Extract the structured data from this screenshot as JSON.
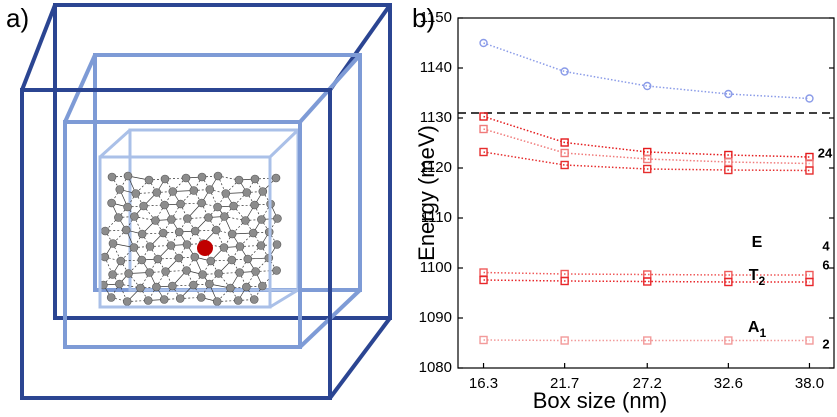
{
  "panel_labels": [
    "a)",
    "b)"
  ],
  "chart_data": {
    "type": "line",
    "x_label": "Box size (nm)",
    "y_label": "Energy (meV)",
    "x": [
      16.3,
      21.7,
      27.2,
      32.6,
      38.0
    ],
    "xlim": [
      14.6,
      39.7
    ],
    "xticks": [
      16.3,
      21.7,
      27.2,
      32.6,
      {
        "value": 38,
        "label": "38.0"
      }
    ],
    "ylim": [
      1080,
      1150
    ],
    "yticks": [
      1080,
      1090,
      1100,
      1110,
      1120,
      1130,
      1140,
      1150
    ],
    "grid": false,
    "hline": {
      "value": 1131,
      "color": "#000000"
    },
    "series": [
      {
        "color": "#8a9be8",
        "marker": "circle",
        "values": [
          1145,
          1139.3,
          1136.4,
          1134.8,
          1133.9
        ]
      },
      {
        "color": "#e41a1c",
        "marker": "square",
        "values": [
          1130.3,
          1125.1,
          1123.2,
          1122.6,
          1122.2
        ]
      },
      {
        "color": "#f07a7a",
        "marker": "square",
        "values": [
          1127.8,
          1123,
          1121.8,
          1121.2,
          1120.9
        ]
      },
      {
        "color": "#e62e2e",
        "marker": "square",
        "values": [
          1123.2,
          1120.6,
          1119.8,
          1119.6,
          1119.5
        ]
      },
      {
        "color": "#ef5a5a",
        "marker": "square",
        "values": [
          1099.1,
          1098.8,
          1098.7,
          1098.6,
          1098.6
        ]
      },
      {
        "color": "#e8262a",
        "marker": "square",
        "values": [
          1097.6,
          1097.4,
          1097.3,
          1097.2,
          1097.2
        ]
      },
      {
        "color": "#f29a9a",
        "marker": "square",
        "values": [
          1085.6,
          1085.5,
          1085.5,
          1085.5,
          1085.5
        ]
      }
    ],
    "annotations": [
      {
        "text": "E"
      },
      {
        "text": "T",
        "subscript": "2"
      },
      {
        "text": "A",
        "subscript": "1"
      }
    ],
    "degeneracy_labels": [
      24,
      4,
      6,
      2
    ]
  }
}
